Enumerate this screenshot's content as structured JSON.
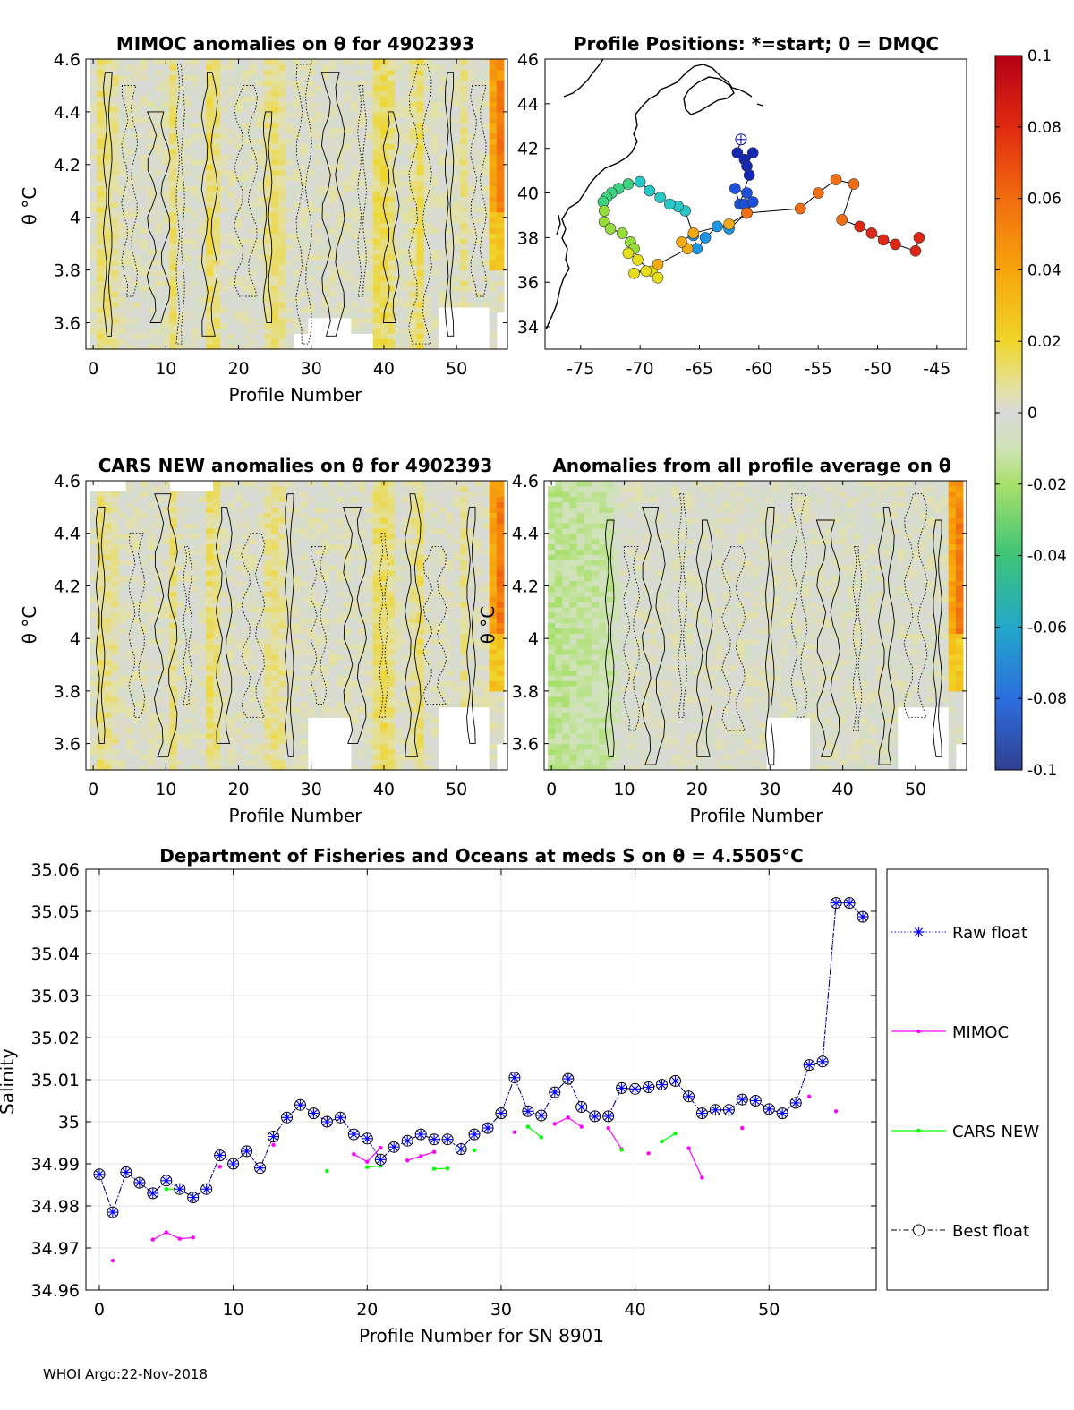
{
  "panels": {
    "mimoc_title": "MIMOC anomalies on θ  for 4902393",
    "positions_title": "Profile Positions: *=start; 0 = DMQC",
    "cars_title": "CARS NEW anomalies on θ for 4902393",
    "avg_title": "Anomalies from all profile average on θ",
    "theta_label": "θ °C",
    "profile_xlabel": "Profile Number",
    "theta_ticks": [
      "4.6",
      "4.4",
      "4.2",
      "4",
      "3.8",
      "3.6"
    ],
    "theta_tick_values": [
      4.6,
      4.4,
      4.2,
      4.0,
      3.8,
      3.6
    ],
    "theta_range": [
      3.5,
      4.6
    ],
    "profile_ticks": [
      "0",
      "10",
      "20",
      "30",
      "40",
      "50"
    ],
    "profile_tick_values": [
      0,
      10,
      20,
      30,
      40,
      50
    ],
    "profile_range": [
      -1,
      57
    ],
    "lon_ticks": [
      "-75",
      "-70",
      "-65",
      "-60",
      "-55",
      "-50",
      "-45"
    ],
    "lon_tick_values": [
      -75,
      -70,
      -65,
      -60,
      -55,
      -50,
      -45
    ],
    "lon_range": [
      -78,
      -42.5
    ],
    "lat_ticks": [
      "46",
      "44",
      "42",
      "40",
      "38",
      "36",
      "34"
    ],
    "lat_tick_values": [
      46,
      44,
      42,
      40,
      38,
      36,
      34
    ],
    "lat_range": [
      33,
      46
    ]
  },
  "colorbar": {
    "ticks": [
      "0.1",
      "0.08",
      "0.06",
      "0.04",
      "0.02",
      "0",
      "-0.02",
      "-0.04",
      "-0.06",
      "-0.08",
      "-0.1"
    ],
    "tick_values": [
      0.1,
      0.08,
      0.06,
      0.04,
      0.02,
      0,
      -0.02,
      -0.04,
      -0.06,
      -0.08,
      -0.1
    ],
    "range": [
      -0.1,
      0.1
    ]
  },
  "track": {
    "lon": [
      -61.5,
      -61.8,
      -61.2,
      -60.5,
      -61,
      -60.8,
      -61.6,
      -62,
      -61,
      -61.2,
      -60.5,
      -61,
      -62.5,
      -63.5,
      -64.5,
      -65.2,
      -65.5,
      -66.2,
      -66.8,
      -67.5,
      -68.3,
      -69.2,
      -70,
      -71,
      -71.8,
      -72.4,
      -72.8,
      -73.1,
      -73,
      -73,
      -72.5,
      -71.5,
      -70.8,
      -70.5,
      -71,
      -70.2,
      -69,
      -68.5,
      -69.5,
      -70.5,
      -68.5,
      -66,
      -66.5,
      -65.5,
      -62.5,
      -61,
      -56.5,
      -55,
      -53.5,
      -52,
      -53,
      -51.5,
      -50.5,
      -49.5,
      -48.5,
      -46.8,
      -46.5
    ],
    "lat": [
      42.4,
      41.8,
      41.5,
      41.8,
      41.2,
      40.8,
      39.5,
      40.2,
      40,
      39.5,
      39.6,
      39.1,
      38.4,
      38.5,
      38,
      37.5,
      38.1,
      39.2,
      39.4,
      39.5,
      39.8,
      40.1,
      40.5,
      40.4,
      40.2,
      40,
      39.8,
      39.6,
      39.2,
      38.7,
      38.4,
      38.2,
      37.8,
      37.5,
      37.3,
      37,
      36.5,
      36.2,
      36.5,
      36.4,
      36.8,
      37.5,
      37.8,
      38.2,
      38.6,
      39.1,
      39.3,
      40,
      40.6,
      40.4,
      38.8,
      38.5,
      38.2,
      37.9,
      37.7,
      37.4,
      38
    ]
  },
  "coast_label": "",
  "salinity": {
    "chart_data": {
      "type": "line",
      "title": "Department of Fisheries and Oceans at meds S on θ = 4.5505°C",
      "xlabel": "Profile Number for SN 8901",
      "ylabel": "Salinity",
      "xlim": [
        -1,
        58
      ],
      "ylim": [
        34.96,
        35.06
      ],
      "x_ticks": [
        "0",
        "10",
        "20",
        "30",
        "40",
        "50"
      ],
      "x_tick_values": [
        0,
        10,
        20,
        30,
        40,
        50
      ],
      "y_ticks": [
        "35.06",
        "35.05",
        "35.04",
        "35.03",
        "35.02",
        "35.01",
        "35",
        "34.99",
        "34.98",
        "34.97",
        "34.96"
      ],
      "y_tick_values": [
        35.06,
        35.05,
        35.04,
        35.03,
        35.02,
        35.01,
        35.0,
        34.99,
        34.98,
        34.97,
        34.96
      ],
      "grid": true,
      "series": [
        {
          "name": "Raw float",
          "color": "#0000ff",
          "x": [
            0,
            1,
            2,
            3,
            4,
            5,
            6,
            7,
            8,
            9,
            10,
            11,
            12,
            13,
            14,
            15,
            16,
            17,
            18,
            19,
            20,
            21,
            22,
            23,
            24,
            25,
            26,
            27,
            28,
            29,
            30,
            31,
            32,
            33,
            34,
            35,
            36,
            37,
            38,
            39,
            40,
            41,
            42,
            43,
            44,
            45,
            46,
            47,
            48,
            49,
            50,
            51,
            52,
            53,
            54,
            55,
            56,
            57
          ],
          "y": [
            34.9875,
            34.9785,
            34.988,
            34.9855,
            34.983,
            34.986,
            34.984,
            34.982,
            34.984,
            34.992,
            34.99,
            34.993,
            34.989,
            34.9965,
            35.001,
            35.004,
            35.002,
            35.0,
            35.001,
            34.997,
            34.996,
            34.991,
            34.994,
            34.9955,
            34.997,
            34.9958,
            34.9958,
            34.9935,
            34.997,
            34.9985,
            35.002,
            35.0105,
            35.0025,
            35.0015,
            35.007,
            35.0102,
            35.0035,
            35.0013,
            35.0013,
            35.008,
            35.0078,
            35.0082,
            35.0088,
            35.0097,
            35.006,
            35.002,
            35.0028,
            35.0028,
            35.0053,
            35.005,
            35.003,
            35.002,
            35.0045,
            35.0135,
            35.0143,
            35.052,
            35.052,
            35.0487
          ]
        },
        {
          "name": "MIMOC",
          "color": "#ff00ff",
          "segments": [
            {
              "x": [
                1
              ],
              "y": [
                34.967
              ]
            },
            {
              "x": [
                4,
                5,
                6,
                7
              ],
              "y": [
                34.972,
                34.9737,
                34.9722,
                34.9725
              ]
            },
            {
              "x": [
                9
              ],
              "y": [
                34.9893
              ]
            },
            {
              "x": [
                13
              ],
              "y": [
                34.9945
              ]
            },
            {
              "x": [
                19,
                20,
                21
              ],
              "y": [
                34.9923,
                34.9905,
                34.9938
              ]
            },
            {
              "x": [
                23,
                24,
                25
              ],
              "y": [
                34.9908,
                34.9918,
                34.9928
              ]
            },
            {
              "x": [
                27
              ],
              "y": [
                34.9945
              ]
            },
            {
              "x": [
                31
              ],
              "y": [
                34.9975
              ]
            },
            {
              "x": [
                34,
                35,
                36
              ],
              "y": [
                34.9995,
                35.001,
                34.9988
              ]
            },
            {
              "x": [
                38,
                39
              ],
              "y": [
                34.9985,
                34.9935
              ]
            },
            {
              "x": [
                41
              ],
              "y": [
                34.9925
              ]
            },
            {
              "x": [
                44,
                45
              ],
              "y": [
                34.9937,
                34.9867
              ]
            },
            {
              "x": [
                48
              ],
              "y": [
                34.9985
              ]
            },
            {
              "x": [
                53
              ],
              "y": [
                35.006
              ]
            },
            {
              "x": [
                55
              ],
              "y": [
                35.0025
              ]
            }
          ]
        },
        {
          "name": "CARS NEW",
          "color": "#00ff00",
          "segments": [
            {
              "x": [
                5,
                6
              ],
              "y": [
                34.984,
                34.984
              ]
            },
            {
              "x": [
                10
              ],
              "y": [
                34.9895
              ]
            },
            {
              "x": [
                17
              ],
              "y": [
                34.9883
              ]
            },
            {
              "x": [
                20,
                21
              ],
              "y": [
                34.9892,
                34.9895
              ]
            },
            {
              "x": [
                25,
                26
              ],
              "y": [
                34.9888,
                34.9889
              ]
            },
            {
              "x": [
                28
              ],
              "y": [
                34.9932
              ]
            },
            {
              "x": [
                32,
                33
              ],
              "y": [
                34.9988,
                34.9963
              ]
            },
            {
              "x": [
                39
              ],
              "y": [
                34.9933
              ]
            },
            {
              "x": [
                42,
                43
              ],
              "y": [
                34.9953,
                34.9972
              ]
            }
          ]
        },
        {
          "name": "Best float",
          "color": "#000000"
        }
      ]
    },
    "legend": [
      "Raw float",
      "MIMOC",
      "CARS NEW",
      "Best float"
    ]
  },
  "footer": "WHOI Argo:22-Nov-2018"
}
